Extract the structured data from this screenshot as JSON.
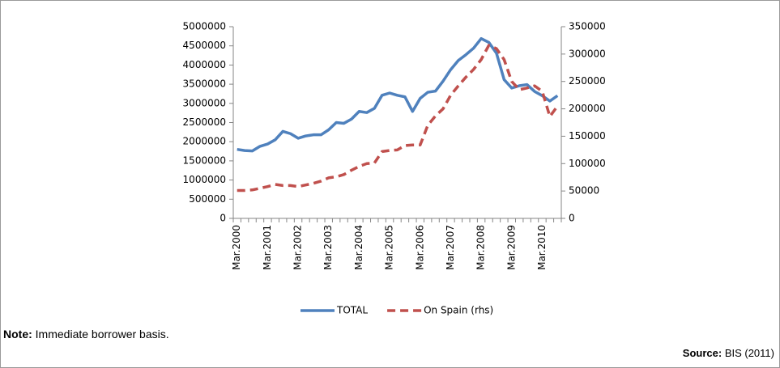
{
  "chart_data": {
    "type": "line",
    "categories": [
      "Mar.2000",
      null,
      null,
      null,
      "Mar.2001",
      null,
      null,
      null,
      "Mar.2002",
      null,
      null,
      null,
      "Mar.2003",
      null,
      null,
      null,
      "Mar.2004",
      null,
      null,
      null,
      "Mar.2005",
      null,
      null,
      null,
      "Mar.2006",
      null,
      null,
      null,
      "Mar.2007",
      null,
      null,
      null,
      "Mar.2008",
      null,
      null,
      null,
      "Mar.2009",
      null,
      null,
      null,
      "Mar.2010",
      null,
      null
    ],
    "series": [
      {
        "name": "TOTAL",
        "color": "#4f81bd",
        "values": [
          1800000,
          1770000,
          1760000,
          1880000,
          1940000,
          2050000,
          2270000,
          2210000,
          2090000,
          2150000,
          2180000,
          2180000,
          2310000,
          2500000,
          2480000,
          2590000,
          2790000,
          2760000,
          2870000,
          3210000,
          3270000,
          3210000,
          3170000,
          2790000,
          3130000,
          3290000,
          3320000,
          3580000,
          3880000,
          4120000,
          4270000,
          4440000,
          4690000,
          4590000,
          4310000,
          3620000,
          3400000,
          3460000,
          3490000,
          3310000,
          3200000,
          3060000,
          3200000
        ]
      },
      {
        "name": "On Spain (rhs)",
        "color": "#c0504d",
        "axis": "y2",
        "dashed": true,
        "values": [
          51000,
          51000,
          52000,
          55000,
          58000,
          62000,
          60000,
          60000,
          58000,
          61000,
          64000,
          68000,
          74000,
          76000,
          80000,
          88000,
          95000,
          100000,
          101000,
          122000,
          124000,
          125000,
          133000,
          134000,
          134000,
          170000,
          187000,
          200000,
          225000,
          242000,
          258000,
          272000,
          290000,
          316000,
          310000,
          290000,
          250000,
          235000,
          238000,
          242000,
          232000,
          186000,
          205000
        ]
      }
    ],
    "ylim": [
      0,
      5000000
    ],
    "yticks": [
      0,
      500000,
      1000000,
      1500000,
      2000000,
      2500000,
      3000000,
      3500000,
      4000000,
      4500000,
      5000000
    ],
    "y2lim": [
      0,
      350000
    ],
    "y2ticks": [
      0,
      50000,
      100000,
      150000,
      200000,
      250000,
      300000,
      350000
    ],
    "legend": "bottom"
  },
  "note": {
    "label": "Note:",
    "text": "Immediate borrower basis."
  },
  "source": {
    "label": "Source:",
    "text": "BIS (2011)"
  }
}
